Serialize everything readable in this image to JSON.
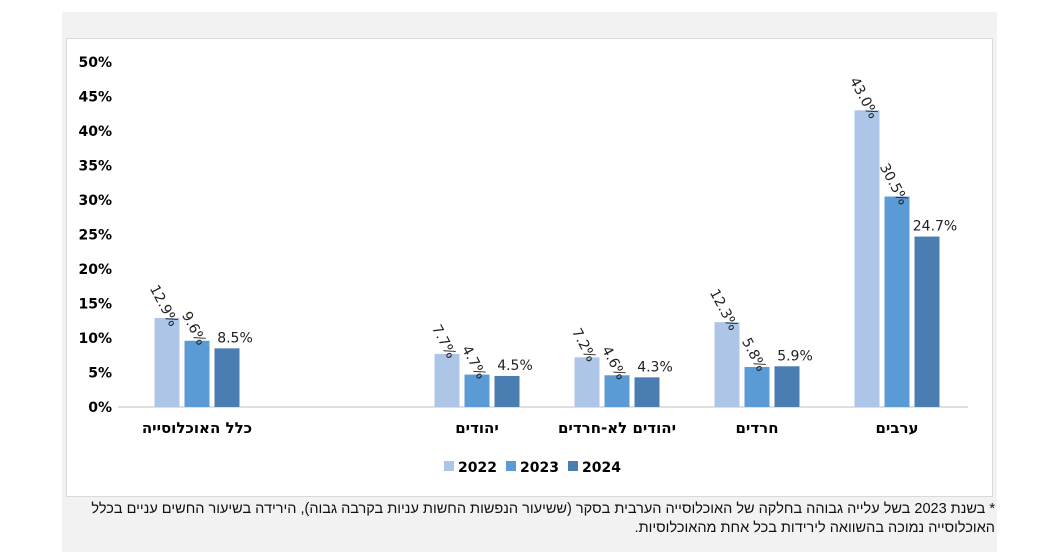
{
  "chart_data": {
    "type": "bar",
    "categories": [
      "כלל האוכלוסייה",
      "יהודים",
      "יהודים לא-חרדים",
      "חרדים",
      "ערבים"
    ],
    "series": [
      {
        "name": "2022",
        "color": "#adc6e7",
        "values": [
          12.9,
          7.7,
          7.2,
          12.3,
          43.0
        ]
      },
      {
        "name": "2023",
        "color": "#5b9bd5",
        "values": [
          9.6,
          4.7,
          4.6,
          5.8,
          30.5
        ]
      },
      {
        "name": "2024",
        "color": "#4a7eb3",
        "values": [
          8.5,
          4.5,
          4.3,
          5.9,
          24.7
        ]
      }
    ],
    "data_labels": [
      [
        "12.9%",
        "7.7%",
        "7.2%",
        "12.3%",
        "43.0%"
      ],
      [
        "9.6%",
        "4.7%",
        "4.6%",
        "5.8%",
        "30.5%"
      ],
      [
        "8.5%",
        "4.5%",
        "4.3%",
        "5.9%",
        "24.7%"
      ]
    ],
    "y_ticks": [
      "0%",
      "5%",
      "10%",
      "15%",
      "20%",
      "25%",
      "30%",
      "35%",
      "40%",
      "45%",
      "50%"
    ],
    "ylim": [
      0,
      50
    ],
    "grid": false,
    "legend_position": "bottom"
  },
  "footnote": "* בשנת 2023 בשל עלייה גבוהה בחלקה של האוכלוסייה הערבית בסקר (ששיעור הנפשות החשות עניות בקרבה גבוה), הירידה בשיעור החשים עניים בכלל האוכלוסייה נמוכה בהשוואה לירידות בכל אחת מהאוכלוסיות."
}
